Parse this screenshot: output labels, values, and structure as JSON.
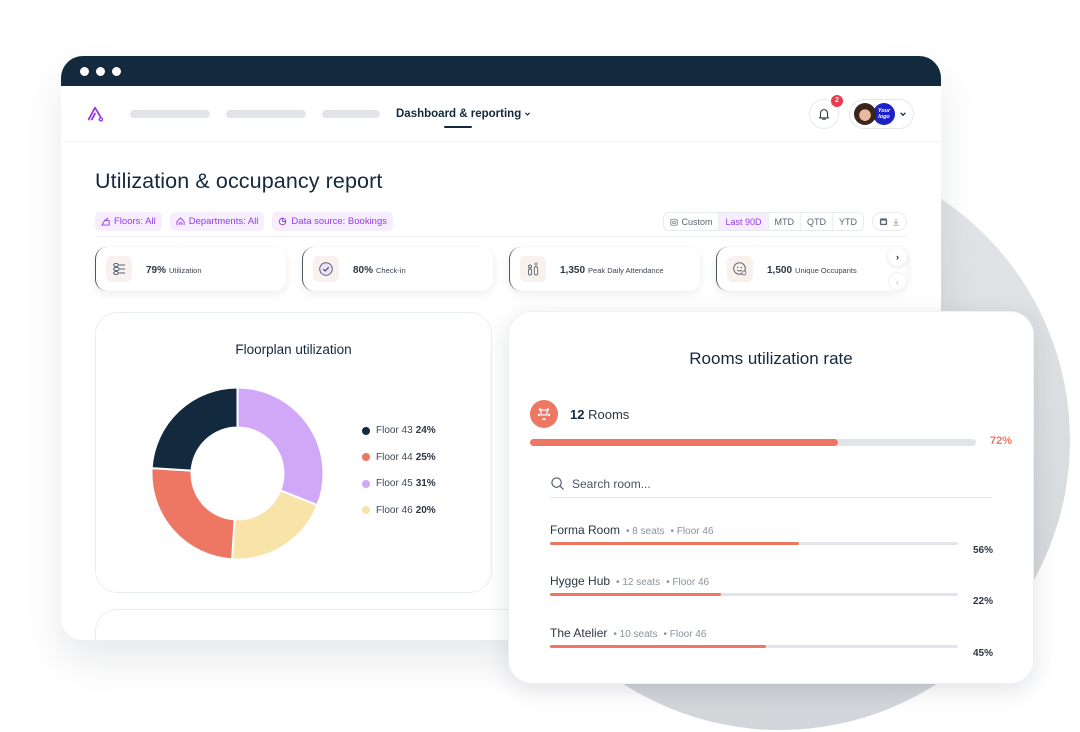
{
  "window": {
    "title_dots": 3
  },
  "nav": {
    "placeholders": [
      80,
      80,
      58
    ],
    "active_item": "Dashboard & reporting",
    "notifications_count": "2",
    "company_logo_text": "Your logo"
  },
  "page": {
    "title": "Utilization & occupancy report"
  },
  "filters": [
    {
      "label": "Floors: All",
      "icon": "floor-icon"
    },
    {
      "label": "Departments: All",
      "icon": "departments-icon"
    },
    {
      "label": "Data source: Bookings",
      "icon": "data-source-icon"
    }
  ],
  "date_ranges": [
    {
      "label": "Custom",
      "active": false
    },
    {
      "label": "Last 90D",
      "active": true
    },
    {
      "label": "MTD",
      "active": false
    },
    {
      "label": "QTD",
      "active": false
    },
    {
      "label": "YTD",
      "active": false
    }
  ],
  "kpis": [
    {
      "value": "79%",
      "label": "Utilization",
      "icon": "sliders-icon"
    },
    {
      "value": "80%",
      "label": "Check-in",
      "icon": "check-circle-icon"
    },
    {
      "value": "1,350",
      "label": "Peak Daily Attendance",
      "icon": "people-icon"
    },
    {
      "value": "1,500",
      "label": "Unique Occupants",
      "icon": "smiley-user-icon"
    }
  ],
  "kpi_nav": {
    "next": "›",
    "prev": "‹"
  },
  "floorplan": {
    "title": "Floorplan utilization"
  },
  "chart_data": {
    "type": "pie",
    "title": "Floorplan utilization",
    "donut": true,
    "categories": [
      "Floor 43",
      "Floor 44",
      "Floor 45",
      "Floor 46"
    ],
    "values": [
      24,
      25,
      31,
      20
    ],
    "colors": [
      "#13293d",
      "#ed7763",
      "#d1a8f8",
      "#f8e3a8"
    ],
    "legend_position": "right",
    "value_labels": [
      "24%",
      "25%",
      "31%",
      "20%"
    ]
  },
  "rooms": {
    "title": "Rooms utilization rate",
    "count": "12",
    "count_label": "Rooms",
    "overall_pct": "72%",
    "overall_fill": 69,
    "search_placeholder": "Search room...",
    "items": [
      {
        "name": "Forma Room",
        "seats": "8 seats",
        "floor": "Floor 46",
        "pct": "56%",
        "fill": 61
      },
      {
        "name": "Hygge Hub",
        "seats": "12 seats",
        "floor": "Floor 46",
        "pct": "22%",
        "fill": 42
      },
      {
        "name": "The Atelier",
        "seats": "10 seats",
        "floor": "Floor 46",
        "pct": "45%",
        "fill": 53
      }
    ]
  },
  "colors": {
    "navy": "#13293d",
    "coral": "#ed7763",
    "purple_accent": "#9739e8",
    "lavender": "#d1a8f8",
    "butter": "#f8e3a8",
    "notification_red": "#ef3b50"
  }
}
